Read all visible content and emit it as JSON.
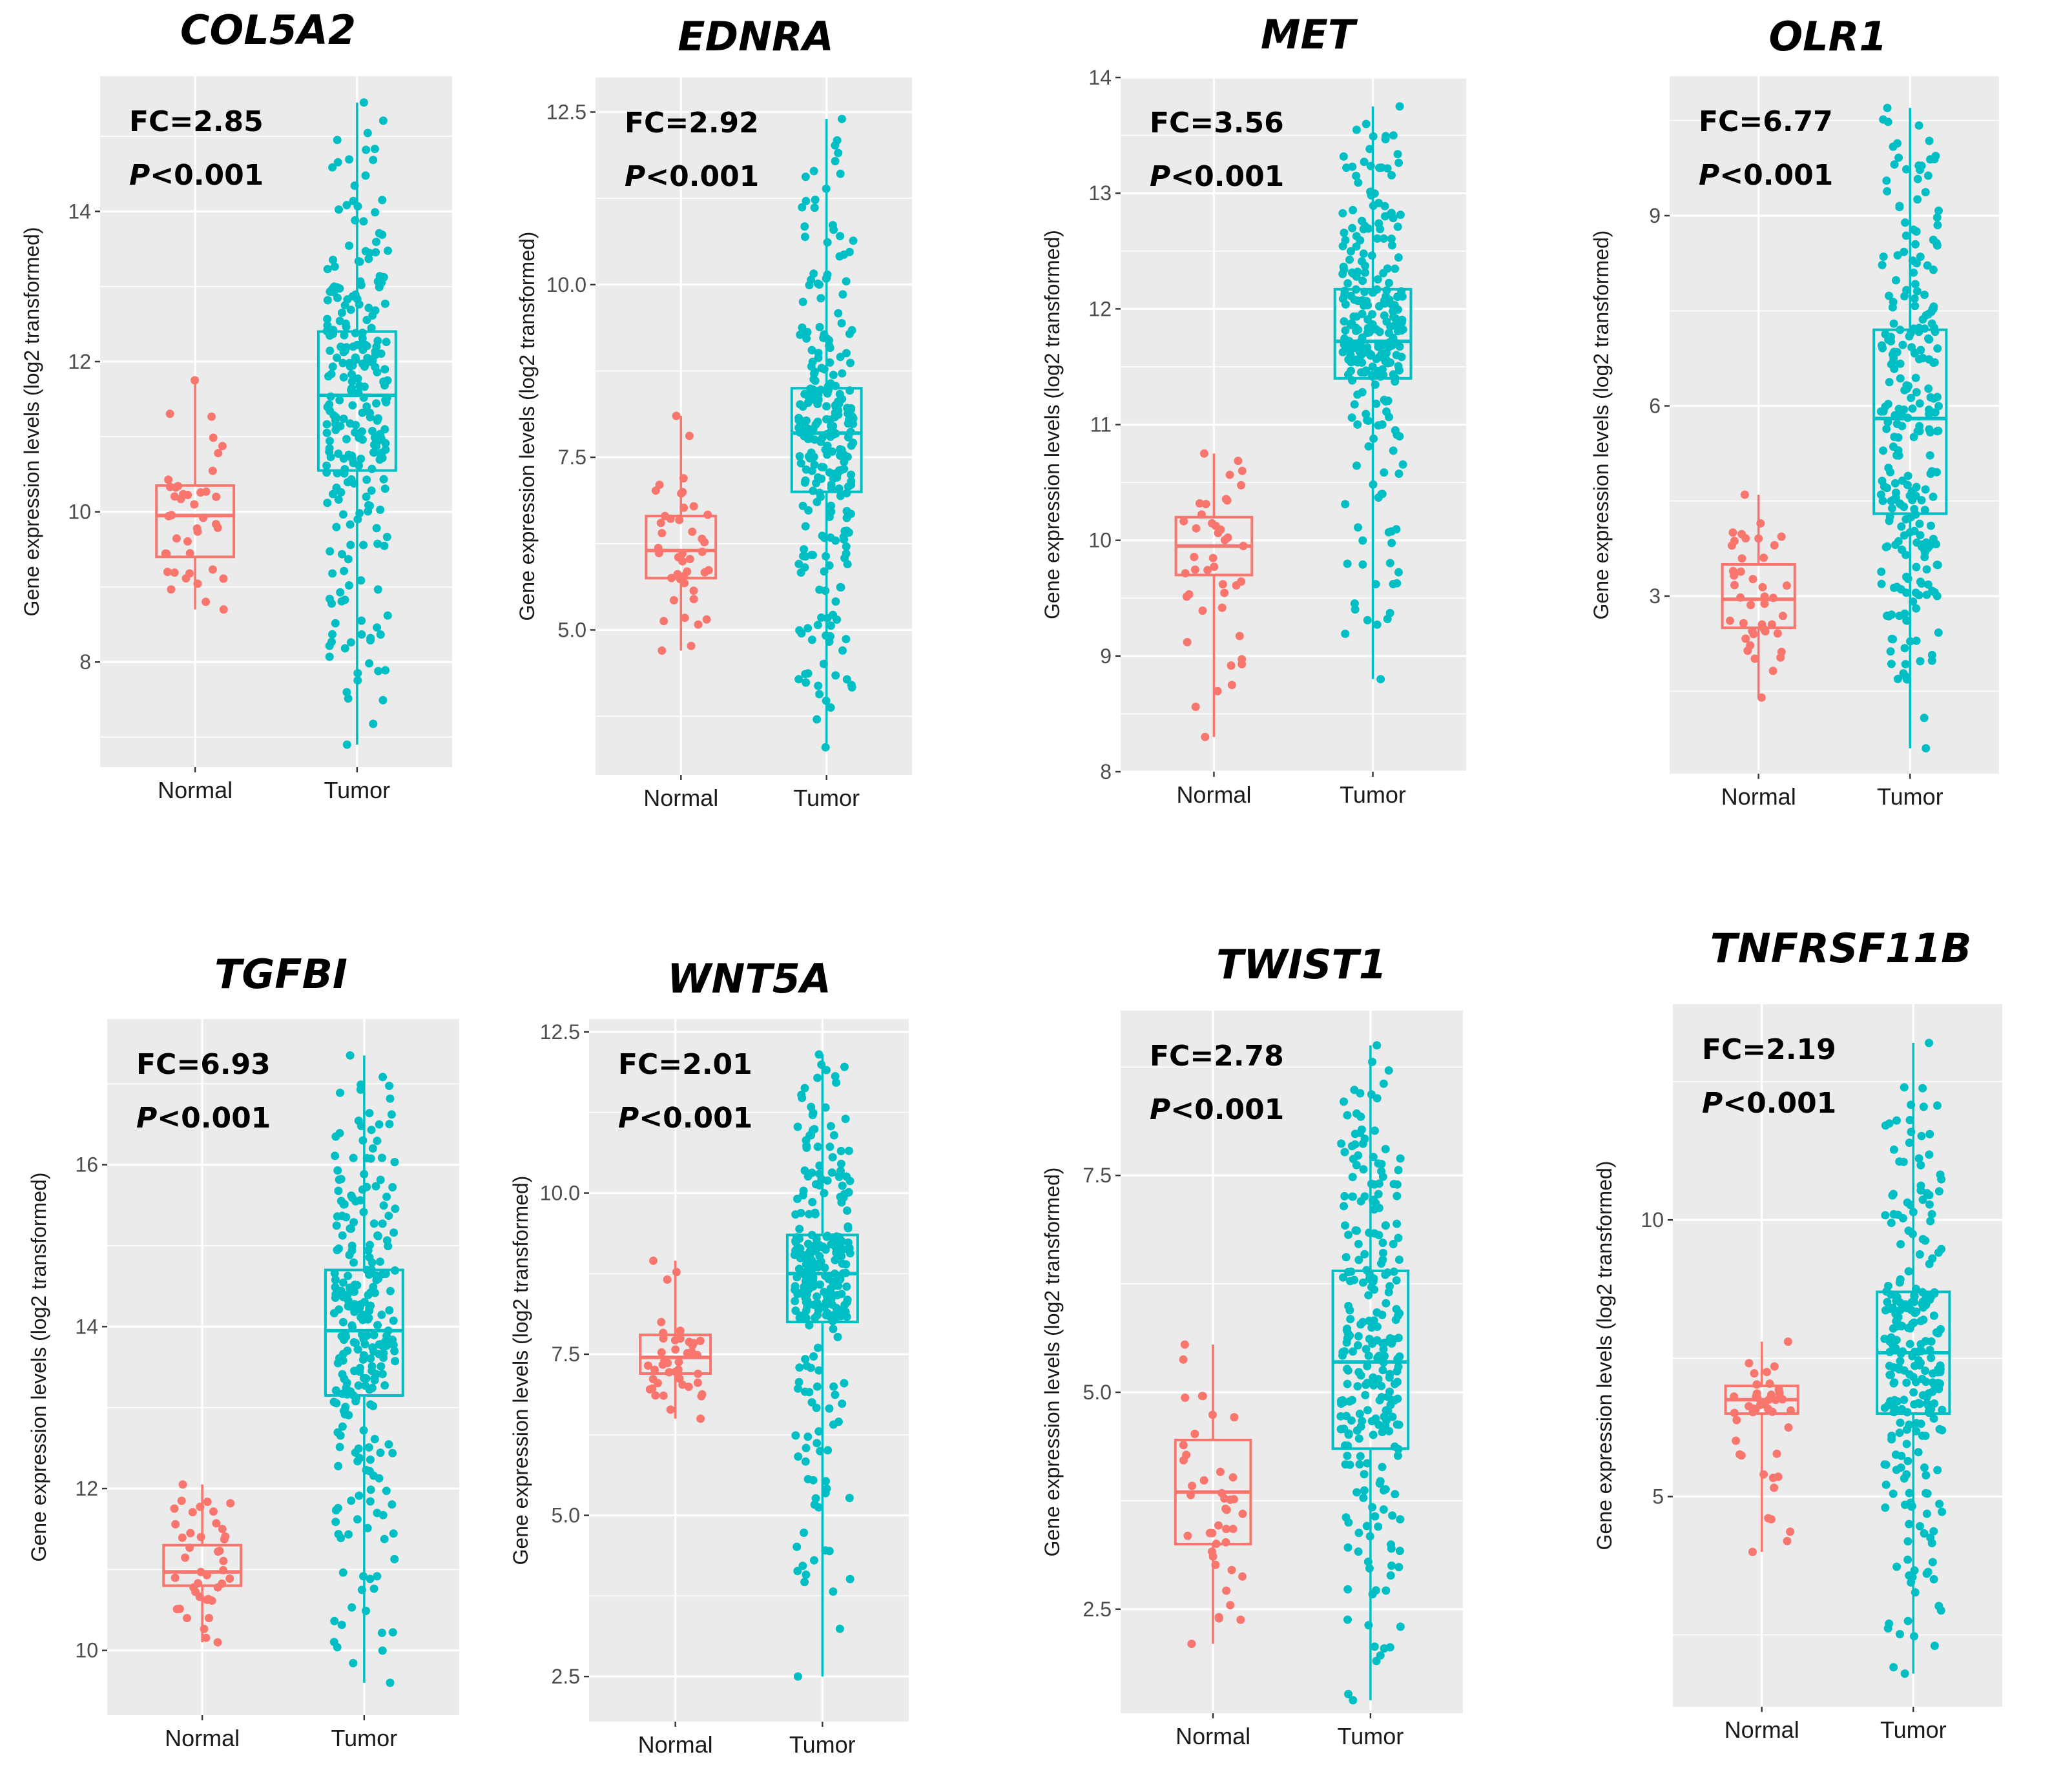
{
  "figure": {
    "y_axis_label": "Gene expression levels (log2 transformed)",
    "groups": [
      "Normal",
      "Tumor"
    ],
    "group_colors": {
      "Normal": "#F8766D",
      "Tumor": "#00BFC4"
    },
    "panel_background": "#EBEBEB",
    "grid_color": "#FFFFFF"
  },
  "chart_data": [
    {
      "type": "boxplot",
      "title": "COL5A2",
      "fc_text": "FC=2.85",
      "p_text": "<0.001",
      "p_symbol": "P",
      "ylim": [
        6.6,
        15.8
      ],
      "yticks": [
        8,
        10,
        12,
        14
      ],
      "categories": [
        "Normal",
        "Tumor"
      ],
      "boxes": [
        {
          "name": "Normal",
          "min": 8.7,
          "q1": 9.4,
          "median": 9.95,
          "q3": 10.35,
          "max": 11.75,
          "n": 40
        },
        {
          "name": "Tumor",
          "min": 6.9,
          "q1": 10.55,
          "median": 11.55,
          "q3": 12.4,
          "max": 15.45,
          "n": 260
        }
      ]
    },
    {
      "type": "boxplot",
      "title": "EDNRA",
      "fc_text": "FC=2.92",
      "p_text": "<0.001",
      "p_symbol": "P",
      "ylim": [
        2.9,
        13.0
      ],
      "yticks": [
        5.0,
        7.5,
        10.0,
        12.5
      ],
      "yticklabels": [
        "5.0",
        "7.5",
        "10.0",
        "12.5"
      ],
      "categories": [
        "Normal",
        "Tumor"
      ],
      "boxes": [
        {
          "name": "Normal",
          "min": 4.7,
          "q1": 5.75,
          "median": 6.15,
          "q3": 6.65,
          "max": 8.1,
          "n": 40
        },
        {
          "name": "Tumor",
          "min": 3.3,
          "q1": 7.0,
          "median": 7.85,
          "q3": 8.5,
          "max": 12.4,
          "n": 260
        }
      ]
    },
    {
      "type": "boxplot",
      "title": "MET",
      "fc_text": "FC=3.56",
      "p_text": "<0.001",
      "p_symbol": "P",
      "ylim": [
        8.0,
        14.0
      ],
      "yticks": [
        8,
        9,
        10,
        11,
        12,
        13,
        14
      ],
      "categories": [
        "Normal",
        "Tumor"
      ],
      "boxes": [
        {
          "name": "Normal",
          "min": 8.3,
          "q1": 9.7,
          "median": 9.95,
          "q3": 10.2,
          "max": 10.75,
          "n": 40
        },
        {
          "name": "Tumor",
          "min": 8.8,
          "q1": 11.4,
          "median": 11.72,
          "q3": 12.17,
          "max": 13.75,
          "n": 260
        }
      ]
    },
    {
      "type": "boxplot",
      "title": "OLR1",
      "fc_text": "FC=6.77",
      "p_text": "<0.001",
      "p_symbol": "P",
      "ylim": [
        0.2,
        11.2
      ],
      "yticks": [
        3,
        6,
        9
      ],
      "categories": [
        "Normal",
        "Tumor"
      ],
      "boxes": [
        {
          "name": "Normal",
          "min": 1.4,
          "q1": 2.5,
          "median": 2.95,
          "q3": 3.5,
          "max": 4.6,
          "n": 40
        },
        {
          "name": "Tumor",
          "min": 0.6,
          "q1": 4.3,
          "median": 5.8,
          "q3": 7.2,
          "max": 10.7,
          "n": 260
        }
      ]
    },
    {
      "type": "boxplot",
      "title": "TGFBI",
      "fc_text": "FC=6.93",
      "p_text": "<0.001",
      "p_symbol": "P",
      "ylim": [
        9.2,
        17.8
      ],
      "yticks": [
        10,
        12,
        14,
        16
      ],
      "categories": [
        "Normal",
        "Tumor"
      ],
      "boxes": [
        {
          "name": "Normal",
          "min": 10.1,
          "q1": 10.8,
          "median": 10.97,
          "q3": 11.3,
          "max": 12.05,
          "n": 40
        },
        {
          "name": "Tumor",
          "min": 9.6,
          "q1": 13.15,
          "median": 13.95,
          "q3": 14.7,
          "max": 17.35,
          "n": 260
        }
      ]
    },
    {
      "type": "boxplot",
      "title": "WNT5A",
      "fc_text": "FC=2.01",
      "p_text": "<0.001",
      "p_symbol": "P",
      "ylim": [
        1.8,
        12.7
      ],
      "yticks": [
        2.5,
        5.0,
        7.5,
        10.0,
        12.5
      ],
      "yticklabels": [
        "2.5",
        "5.0",
        "7.5",
        "10.0",
        "12.5"
      ],
      "categories": [
        "Normal",
        "Tumor"
      ],
      "boxes": [
        {
          "name": "Normal",
          "min": 6.5,
          "q1": 7.2,
          "median": 7.45,
          "q3": 7.8,
          "max": 8.95,
          "n": 40
        },
        {
          "name": "Tumor",
          "min": 2.5,
          "q1": 8.0,
          "median": 8.75,
          "q3": 9.35,
          "max": 12.15,
          "n": 260
        }
      ]
    },
    {
      "type": "boxplot",
      "title": "TWIST1",
      "fc_text": "FC=2.78",
      "p_text": "<0.001",
      "p_symbol": "P",
      "ylim": [
        1.3,
        9.4
      ],
      "yticks": [
        2.5,
        5.0,
        7.5
      ],
      "yticklabels": [
        "2.5",
        "5.0",
        "7.5"
      ],
      "categories": [
        "Normal",
        "Tumor"
      ],
      "boxes": [
        {
          "name": "Normal",
          "min": 2.1,
          "q1": 3.25,
          "median": 3.85,
          "q3": 4.45,
          "max": 5.55,
          "n": 40
        },
        {
          "name": "Tumor",
          "min": 1.45,
          "q1": 4.35,
          "median": 5.35,
          "q3": 6.4,
          "max": 9.0,
          "n": 260
        }
      ]
    },
    {
      "type": "boxplot",
      "title": "TNFRSF11B",
      "fc_text": "FC=2.19",
      "p_text": "<0.001",
      "p_symbol": "P",
      "ylim": [
        1.2,
        13.9
      ],
      "yticks": [
        5,
        10
      ],
      "categories": [
        "Normal",
        "Tumor"
      ],
      "boxes": [
        {
          "name": "Normal",
          "min": 4.0,
          "q1": 6.5,
          "median": 6.75,
          "q3": 7.0,
          "max": 7.8,
          "n": 40
        },
        {
          "name": "Tumor",
          "min": 1.8,
          "q1": 6.5,
          "median": 7.6,
          "q3": 8.7,
          "max": 13.2,
          "n": 260
        }
      ]
    }
  ]
}
